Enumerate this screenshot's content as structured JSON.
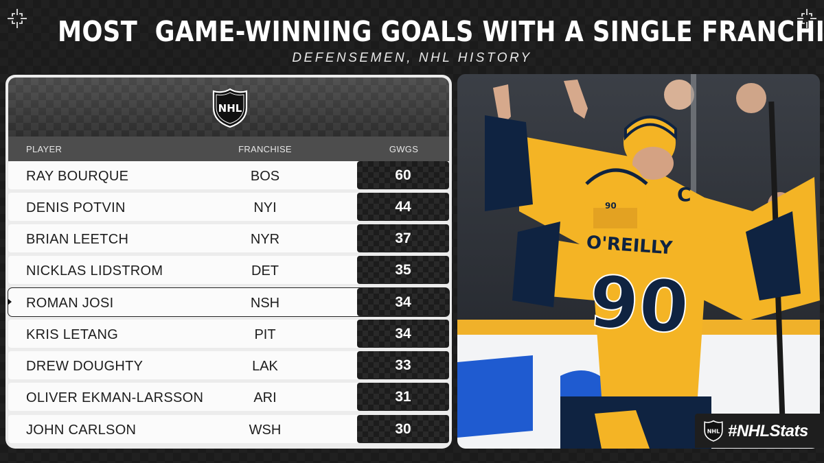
{
  "header": {
    "title": "MOST  GAME-WINNING GOALS WITH A SINGLE FRANCHISE",
    "subtitle": "DEFENSEMEN, NHL HISTORY"
  },
  "logo": {
    "text": "NHL"
  },
  "table": {
    "columns": {
      "player": "PLAYER",
      "franchise": "FRANCHISE",
      "gwgs": "GWGS"
    },
    "rows": [
      {
        "player": "RAY BOURQUE",
        "franchise": "BOS",
        "gwgs": "60"
      },
      {
        "player": "DENIS POTVIN",
        "franchise": "NYI",
        "gwgs": "44"
      },
      {
        "player": "BRIAN LEETCH",
        "franchise": "NYR",
        "gwgs": "37"
      },
      {
        "player": "NICKLAS LIDSTROM",
        "franchise": "DET",
        "gwgs": "35"
      },
      {
        "player": "ROMAN JOSI",
        "franchise": "NSH",
        "gwgs": "34"
      },
      {
        "player": "KRIS LETANG",
        "franchise": "PIT",
        "gwgs": "34"
      },
      {
        "player": "DREW DOUGHTY",
        "franchise": "LAK",
        "gwgs": "33"
      },
      {
        "player": "OLIVER EKMAN-LARSSON",
        "franchise": "ARI",
        "gwgs": "31"
      },
      {
        "player": "JOHN CARLSON",
        "franchise": "WSH",
        "gwgs": "30"
      }
    ],
    "highlighted_player": "ROMAN JOSI"
  },
  "photo": {
    "jersey_name": "O'REILLY",
    "jersey_number": "90",
    "sleeve_number": "90",
    "captain_letter": "C",
    "jersey_color": "#f4b425",
    "navy_color": "#0f2341"
  },
  "hashtag": "#NHLStats",
  "colors": {
    "background": "#1b1b1b",
    "row": "#fbfbfb",
    "value_cell": "#1c1c1c"
  }
}
